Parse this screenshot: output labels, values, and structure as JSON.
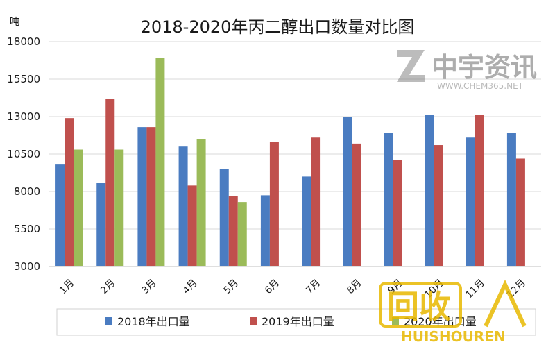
{
  "chart_data": {
    "type": "bar",
    "title": "2018-2020年丙二醇出口数量对比图",
    "ylabel": "吨",
    "xlabel": "",
    "ylim": [
      3000,
      18000
    ],
    "yticks": [
      3000,
      5500,
      8000,
      10500,
      13000,
      15500,
      18000
    ],
    "categories": [
      "1月",
      "2月",
      "3月",
      "4月",
      "5月",
      "6月",
      "7月",
      "8月",
      "9月",
      "10月",
      "11月",
      "12月"
    ],
    "series": [
      {
        "name": "2018年出口量",
        "color": "#4a7cc1",
        "values": [
          9800,
          8600,
          12300,
          11000,
          9500,
          7750,
          9000,
          13000,
          11900,
          13100,
          11600,
          11900
        ]
      },
      {
        "name": "2019年出口量",
        "color": "#c0504d",
        "values": [
          12900,
          14200,
          12300,
          8400,
          7700,
          11300,
          11600,
          11200,
          10100,
          11100,
          13100,
          10200
        ]
      },
      {
        "name": "2020年出口量",
        "color": "#9bbb59",
        "values": [
          10800,
          10800,
          16900,
          11500,
          7300,
          null,
          null,
          null,
          null,
          null,
          null,
          null
        ]
      }
    ],
    "grid": true,
    "legend": "bottom"
  },
  "watermarks": {
    "top_brand": "中宇资讯",
    "top_url": "WWW.CHEM365.NET",
    "bottom_brand": "回收",
    "bottom_url": "HUISHOUREN"
  }
}
